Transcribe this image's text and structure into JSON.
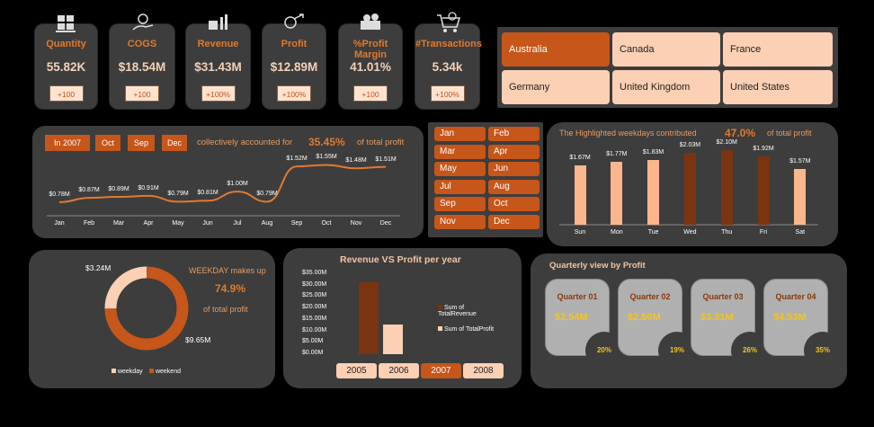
{
  "kpis": [
    {
      "label": "Quantity",
      "value": "55.82K",
      "badge": "+100",
      "icon": "boxes-icon"
    },
    {
      "label": "COGS",
      "value": "$18.54M",
      "badge": "+100",
      "icon": "hand-coin-icon"
    },
    {
      "label": "Revenue",
      "value": "$31.43M",
      "badge": "+100%",
      "icon": "money-chart-icon"
    },
    {
      "label": "Profit",
      "value": "$12.89M",
      "badge": "+100%",
      "icon": "profit-arrow-icon"
    },
    {
      "label": "%Profit Margin",
      "value": "41.01%",
      "badge": "+100",
      "icon": "money-stack-icon"
    },
    {
      "label": "#Transactions",
      "value": "5.34k",
      "badge": "+100%",
      "icon": "shopping-cart-icon"
    }
  ],
  "countries": [
    {
      "name": "Australia",
      "selected": true
    },
    {
      "name": "Canada",
      "selected": false
    },
    {
      "name": "France",
      "selected": false
    },
    {
      "name": "Germany",
      "selected": false
    },
    {
      "name": "United Kingdom",
      "selected": false
    },
    {
      "name": "United States",
      "selected": false
    }
  ],
  "month_summary": {
    "year_tag": "In 2007",
    "month_tags": [
      "Oct",
      "Sep",
      "Dec"
    ],
    "text1": "collectively accounted for",
    "percent": "35.45%",
    "text2": "of total profit"
  },
  "months": [
    "Jan",
    "Feb",
    "Mar",
    "Apr",
    "May",
    "Jun",
    "Jul",
    "Aug",
    "Sep",
    "Oct",
    "Nov",
    "Dec"
  ],
  "weekday_summary": {
    "text1": "The Highlighted weekdays contributed",
    "percent": "47.0%",
    "text2": "of total profit"
  },
  "donut": {
    "value_weekend": "$3.24M",
    "value_weekday": "$9.65M",
    "text1": "WEEKDAY makes up",
    "percent": "74.9%",
    "text2": "of total profit",
    "legend": [
      "weekday",
      "weekend"
    ]
  },
  "revenue_profit": {
    "title": "Revenue VS Profit per year",
    "legend": [
      "Sum of TotalRevenue",
      "Sum of TotalProfit"
    ],
    "y_ticks": [
      "$35.00M",
      "$30.00M",
      "$25.00M",
      "$20.00M",
      "$15.00M",
      "$10.00M",
      "$5.00M",
      "$0.00M"
    ]
  },
  "years": [
    {
      "label": "2005",
      "selected": false
    },
    {
      "label": "2006",
      "selected": false
    },
    {
      "label": "2007",
      "selected": true
    },
    {
      "label": "2008",
      "selected": false
    }
  ],
  "quarters": {
    "title": "Quarterly view by Profit",
    "items": [
      {
        "label": "Quarter 01",
        "value": "$2.54M",
        "share": "20%"
      },
      {
        "label": "Quarter 02",
        "value": "$2.50M",
        "share": "19%"
      },
      {
        "label": "Quarter 03",
        "value": "$3.31M",
        "share": "26%"
      },
      {
        "label": "Quarter 04",
        "value": "$4.53M",
        "share": "35%"
      }
    ]
  },
  "colors": {
    "accent": "#c6561a",
    "light": "#fbd0b5",
    "dark": "#7a3411",
    "panel": "#3d3d3d"
  },
  "chart_data": [
    {
      "type": "line",
      "x": [
        "Jan",
        "Feb",
        "Mar",
        "Apr",
        "May",
        "Jun",
        "Jul",
        "Aug",
        "Sep",
        "Oct",
        "Nov",
        "Dec"
      ],
      "values": [
        0.78,
        0.87,
        0.89,
        0.91,
        0.79,
        0.81,
        1.0,
        0.79,
        1.52,
        1.55,
        1.48,
        1.51
      ],
      "labels": [
        "$0.78M",
        "$0.87M",
        "$0.89M",
        "$0.91M",
        "$0.79M",
        "$0.81M",
        "$1.00M",
        "$0.79M",
        "$1.52M",
        "$1.55M",
        "$1.48M",
        "$1.51M"
      ]
    },
    {
      "type": "bar",
      "categories": [
        "Sun",
        "Mon",
        "Tue",
        "Wed",
        "Thu",
        "Fri",
        "Sat"
      ],
      "values": [
        1.67,
        1.77,
        1.83,
        2.03,
        2.1,
        1.92,
        1.57
      ],
      "labels": [
        "$1.67M",
        "$1.77M",
        "$1.83M",
        "$2.03M",
        "$2.10M",
        "$1.92M",
        "$1.57M"
      ],
      "highlighted": [
        false,
        false,
        false,
        true,
        true,
        true,
        false
      ]
    },
    {
      "type": "pie",
      "categories": [
        "weekday",
        "weekend"
      ],
      "values": [
        9.65,
        3.24
      ]
    },
    {
      "type": "bar",
      "categories": [
        "2007"
      ],
      "series": [
        {
          "name": "Sum of TotalRevenue",
          "values": [
            31.43
          ]
        },
        {
          "name": "Sum of TotalProfit",
          "values": [
            12.89
          ]
        }
      ],
      "ylim": [
        0,
        35
      ]
    }
  ],
  "month_slicer": [
    {
      "label": "Jan",
      "selected": true
    },
    {
      "label": "Feb",
      "selected": true
    },
    {
      "label": "Mar",
      "selected": true
    },
    {
      "label": "Apr",
      "selected": true
    },
    {
      "label": "May",
      "selected": true
    },
    {
      "label": "Jun",
      "selected": true
    },
    {
      "label": "Jul",
      "selected": true
    },
    {
      "label": "Aug",
      "selected": true
    },
    {
      "label": "Sep",
      "selected": true
    },
    {
      "label": "Oct",
      "selected": true
    },
    {
      "label": "Nov",
      "selected": true
    },
    {
      "label": "Dec",
      "selected": true
    }
  ]
}
